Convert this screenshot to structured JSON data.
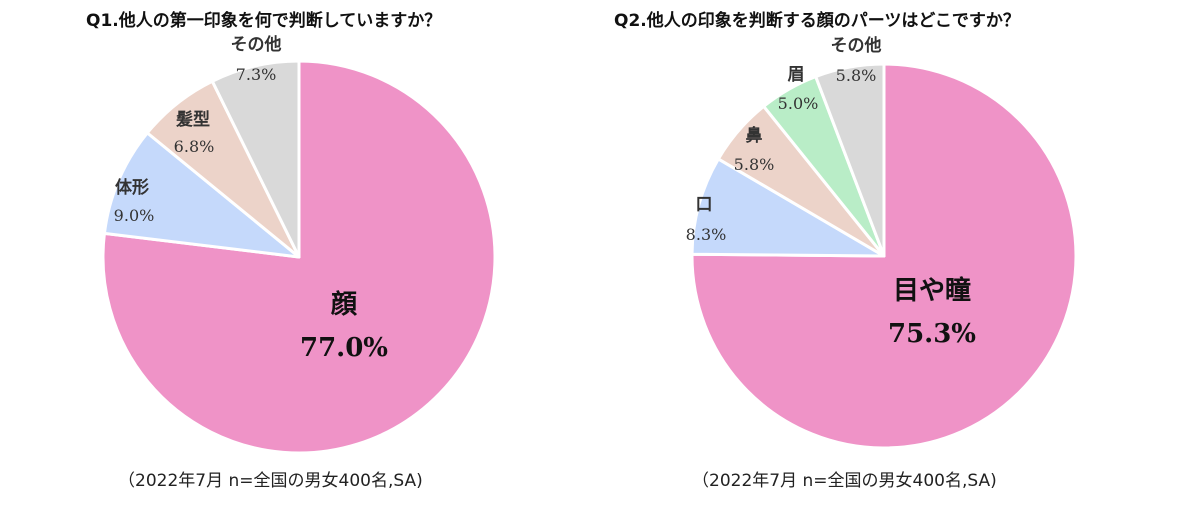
{
  "chart_data": [
    {
      "type": "pie",
      "title": "Q1.他人の第一印象を何で判断していますか？",
      "note": "（2022年7月 n=全国の男女400名,SA)",
      "slices": [
        {
          "label": "顔",
          "value": 77.0,
          "value_label": "77.0%",
          "color": "#ef93c7"
        },
        {
          "label": "体形",
          "value": 9.0,
          "value_label": "9.0%",
          "color": "#c5d9fb"
        },
        {
          "label": "髪型",
          "value": 6.8,
          "value_label": "6.8%",
          "color": "#ecd3c9"
        },
        {
          "label": "その他",
          "value": 7.3,
          "value_label": "7.3%",
          "color": "#d9d9d9"
        }
      ]
    },
    {
      "type": "pie",
      "title": "Q2.他人の印象を判断する顔のパーツはどこですか？",
      "note": "（2022年7月 n=全国の男女400名,SA)",
      "slices": [
        {
          "label": "目や瞳",
          "value": 75.3,
          "value_label": "75.3%",
          "color": "#ef93c7"
        },
        {
          "label": "口",
          "value": 8.3,
          "value_label": "8.3%",
          "color": "#c5d9fb"
        },
        {
          "label": "鼻",
          "value": 5.8,
          "value_label": "5.8%",
          "color": "#ecd3c9"
        },
        {
          "label": "眉",
          "value": 5.0,
          "value_label": "5.0%",
          "color": "#b9edc7"
        },
        {
          "label": "その他",
          "value": 5.8,
          "value_label": "5.8%",
          "color": "#d9d9d9"
        }
      ]
    }
  ]
}
